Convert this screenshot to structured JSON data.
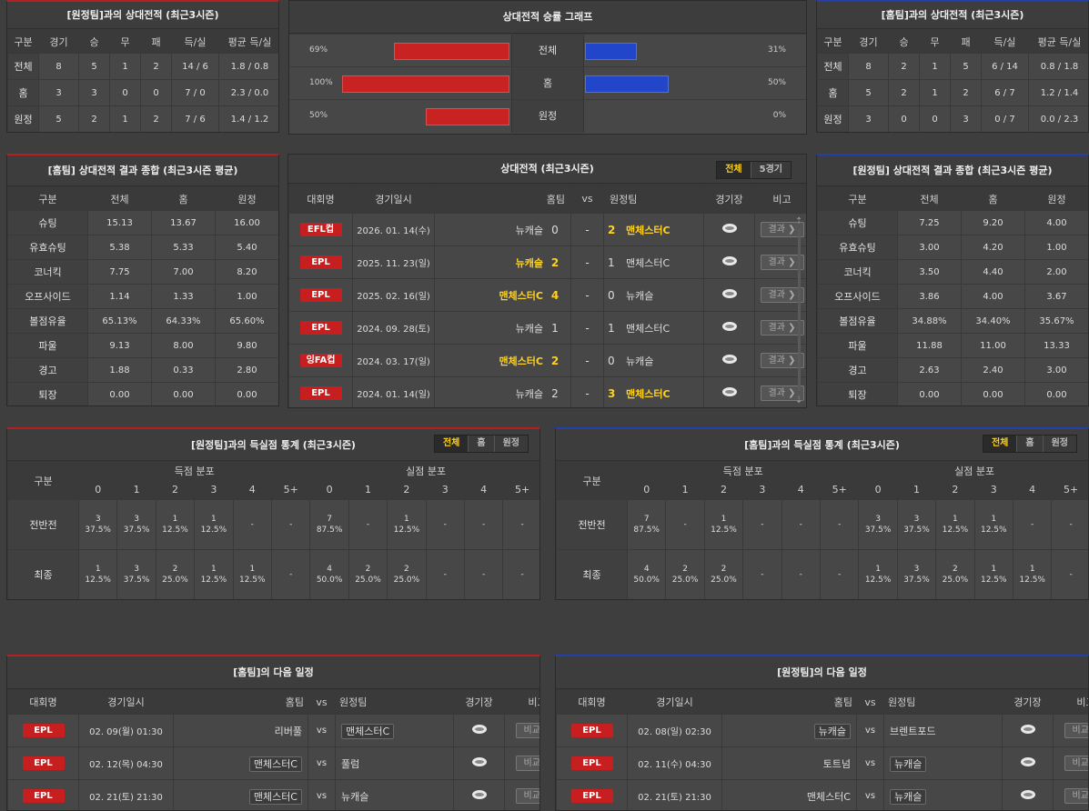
{
  "away_h2h": {
    "title": "[원정팀]과의 상대전적 (최근3시즌)",
    "headers": [
      "구분",
      "경기",
      "승",
      "무",
      "패",
      "득/실",
      "평균 득/실"
    ],
    "rows": [
      [
        "전체",
        "8",
        "5",
        "1",
        "2",
        "14 / 6",
        "1.8 / 0.8"
      ],
      [
        "홈",
        "3",
        "3",
        "0",
        "0",
        "7 / 0",
        "2.3 / 0.0"
      ],
      [
        "원정",
        "5",
        "2",
        "1",
        "2",
        "7 / 6",
        "1.4 / 1.2"
      ]
    ]
  },
  "graph": {
    "title": "상대전적 승률 그래프",
    "rows": [
      {
        "left_pct": "69%",
        "label": "전체",
        "right_pct": "31%",
        "left": 0.69,
        "right": 0.31
      },
      {
        "left_pct": "100%",
        "label": "홈",
        "right_pct": "50%",
        "left": 1.0,
        "right": 0.5
      },
      {
        "left_pct": "50%",
        "label": "원정",
        "right_pct": "0%",
        "left": 0.5,
        "right": 0.0
      }
    ]
  },
  "home_h2h": {
    "title": "[홈팀]과의 상대전적 (최근3시즌)",
    "headers": [
      "구분",
      "경기",
      "승",
      "무",
      "패",
      "득/실",
      "평균 득/실"
    ],
    "rows": [
      [
        "전체",
        "8",
        "2",
        "1",
        "5",
        "6 / 14",
        "0.8 / 1.8"
      ],
      [
        "홈",
        "5",
        "2",
        "1",
        "2",
        "6 / 7",
        "1.2 / 1.4"
      ],
      [
        "원정",
        "3",
        "0",
        "0",
        "3",
        "0 / 7",
        "0.0 / 2.3"
      ]
    ]
  },
  "home_sum": {
    "title": "[홈팀] 상대전적 결과 종합 (최근3시즌 평균)",
    "headers": [
      "구분",
      "전체",
      "홈",
      "원정"
    ],
    "rows": [
      [
        "슈팅",
        "15.13",
        "13.67",
        "16.00"
      ],
      [
        "유효슈팅",
        "5.38",
        "5.33",
        "5.40"
      ],
      [
        "코너킥",
        "7.75",
        "7.00",
        "8.20"
      ],
      [
        "오프사이드",
        "1.14",
        "1.33",
        "1.00"
      ],
      [
        "볼점유율",
        "65.13%",
        "64.33%",
        "65.60%"
      ],
      [
        "파울",
        "9.13",
        "8.00",
        "9.80"
      ],
      [
        "경고",
        "1.88",
        "0.33",
        "2.80"
      ],
      [
        "퇴장",
        "0.00",
        "0.00",
        "0.00"
      ]
    ]
  },
  "away_sum": {
    "title": "[원정팀] 상대전적 결과 종합 (최근3시즌 평균)",
    "headers": [
      "구분",
      "전체",
      "홈",
      "원정"
    ],
    "rows": [
      [
        "슈팅",
        "7.25",
        "9.20",
        "4.00"
      ],
      [
        "유효슈팅",
        "3.00",
        "4.20",
        "1.00"
      ],
      [
        "코너킥",
        "3.50",
        "4.40",
        "2.00"
      ],
      [
        "오프사이드",
        "3.86",
        "4.00",
        "3.67"
      ],
      [
        "볼점유율",
        "34.88%",
        "34.40%",
        "35.67%"
      ],
      [
        "파울",
        "11.88",
        "11.00",
        "13.33"
      ],
      [
        "경고",
        "2.63",
        "2.40",
        "3.00"
      ],
      [
        "퇴장",
        "0.00",
        "0.00",
        "0.00"
      ]
    ]
  },
  "matches": {
    "title": "상대전적 (최근3시즌)",
    "tabs": [
      "전체",
      "5경기"
    ],
    "headers": {
      "league": "대회명",
      "date": "경기일시",
      "home": "홈팀",
      "vs": "vs",
      "away": "원정팀",
      "venue": "경기장",
      "note": "비고"
    },
    "result_label": "결과 ❯",
    "rows": [
      {
        "league": "EFL컵",
        "date": "2026. 01. 14(수)",
        "home": "뉴캐슬",
        "hs": "0",
        "sep": "-",
        "as": "2",
        "away": "맨체스터C",
        "win": "away"
      },
      {
        "league": "EPL",
        "date": "2025. 11. 23(일)",
        "home": "뉴캐슬",
        "hs": "2",
        "sep": "-",
        "as": "1",
        "away": "맨체스터C",
        "win": "home"
      },
      {
        "league": "EPL",
        "date": "2025. 02. 16(일)",
        "home": "맨체스터C",
        "hs": "4",
        "sep": "-",
        "as": "0",
        "away": "뉴캐슬",
        "win": "home"
      },
      {
        "league": "EPL",
        "date": "2024. 09. 28(토)",
        "home": "뉴캐슬",
        "hs": "1",
        "sep": "-",
        "as": "1",
        "away": "맨체스터C",
        "win": "draw"
      },
      {
        "league": "잉FA컵",
        "date": "2024. 03. 17(일)",
        "home": "맨체스터C",
        "hs": "2",
        "sep": "-",
        "as": "0",
        "away": "뉴캐슬",
        "win": "home"
      },
      {
        "league": "EPL",
        "date": "2024. 01. 14(일)",
        "home": "뉴캐슬",
        "hs": "2",
        "sep": "-",
        "as": "3",
        "away": "맨체스터C",
        "win": "away"
      }
    ]
  },
  "away_goals": {
    "title": "[원정팀]과의 득실점 통계 (최근3시즌)",
    "tabs": [
      "전체",
      "홈",
      "원정"
    ],
    "gubun": "구분",
    "scored": "득점 분포",
    "conceded": "실점 분포",
    "cols": [
      "0",
      "1",
      "2",
      "3",
      "4",
      "5+"
    ],
    "rows": [
      {
        "label": "전반전",
        "cells": [
          [
            "3",
            "37.5%"
          ],
          [
            "3",
            "37.5%"
          ],
          [
            "1",
            "12.5%"
          ],
          [
            "1",
            "12.5%"
          ],
          [
            "-",
            ""
          ],
          [
            "-",
            ""
          ],
          [
            "7",
            "87.5%"
          ],
          [
            "-",
            ""
          ],
          [
            "1",
            "12.5%"
          ],
          [
            "-",
            ""
          ],
          [
            "-",
            ""
          ],
          [
            "-",
            ""
          ]
        ]
      },
      {
        "label": "최종",
        "cells": [
          [
            "1",
            "12.5%"
          ],
          [
            "3",
            "37.5%"
          ],
          [
            "2",
            "25.0%"
          ],
          [
            "1",
            "12.5%"
          ],
          [
            "1",
            "12.5%"
          ],
          [
            "-",
            ""
          ],
          [
            "4",
            "50.0%"
          ],
          [
            "2",
            "25.0%"
          ],
          [
            "2",
            "25.0%"
          ],
          [
            "-",
            ""
          ],
          [
            "-",
            ""
          ],
          [
            "-",
            ""
          ]
        ]
      }
    ]
  },
  "home_goals": {
    "title": "[홈팀]과의 득실점 통계 (최근3시즌)",
    "tabs": [
      "전체",
      "홈",
      "원정"
    ],
    "gubun": "구분",
    "scored": "득점 분포",
    "conceded": "실점 분포",
    "cols": [
      "0",
      "1",
      "2",
      "3",
      "4",
      "5+"
    ],
    "rows": [
      {
        "label": "전반전",
        "cells": [
          [
            "7",
            "87.5%"
          ],
          [
            "-",
            ""
          ],
          [
            "1",
            "12.5%"
          ],
          [
            "-",
            ""
          ],
          [
            "-",
            ""
          ],
          [
            "-",
            ""
          ],
          [
            "3",
            "37.5%"
          ],
          [
            "3",
            "37.5%"
          ],
          [
            "1",
            "12.5%"
          ],
          [
            "1",
            "12.5%"
          ],
          [
            "-",
            ""
          ],
          [
            "-",
            ""
          ]
        ]
      },
      {
        "label": "최종",
        "cells": [
          [
            "4",
            "50.0%"
          ],
          [
            "2",
            "25.0%"
          ],
          [
            "2",
            "25.0%"
          ],
          [
            "-",
            ""
          ],
          [
            "-",
            ""
          ],
          [
            "-",
            ""
          ],
          [
            "1",
            "12.5%"
          ],
          [
            "3",
            "37.5%"
          ],
          [
            "2",
            "25.0%"
          ],
          [
            "1",
            "12.5%"
          ],
          [
            "1",
            "12.5%"
          ],
          [
            "-",
            ""
          ]
        ]
      }
    ]
  },
  "home_next": {
    "title": "[홈팀]의 다음 일정",
    "headers": {
      "league": "대회명",
      "date": "경기일시",
      "home": "홈팀",
      "vs": "vs",
      "away": "원정팀",
      "venue": "경기장",
      "note": "비고"
    },
    "btn": "비교 ❯",
    "rows": [
      {
        "league": "EPL",
        "date": "02. 09(월) 01:30",
        "home": "리버풀",
        "vs": "vs",
        "away": "맨체스터C",
        "box": "away"
      },
      {
        "league": "EPL",
        "date": "02. 12(목) 04:30",
        "home": "맨체스터C",
        "vs": "vs",
        "away": "풀럼",
        "box": "home"
      },
      {
        "league": "EPL",
        "date": "02. 21(토) 21:30",
        "home": "맨체스터C",
        "vs": "vs",
        "away": "뉴캐슬",
        "box": "home"
      }
    ]
  },
  "away_next": {
    "title": "[원정팀]의 다음 일정",
    "headers": {
      "league": "대회명",
      "date": "경기일시",
      "home": "홈팀",
      "vs": "vs",
      "away": "원정팀",
      "venue": "경기장",
      "note": "비고"
    },
    "btn": "비교 ❯",
    "rows": [
      {
        "league": "EPL",
        "date": "02. 08(일) 02:30",
        "home": "뉴캐슬",
        "vs": "vs",
        "away": "브렌트포드",
        "box": "home"
      },
      {
        "league": "EPL",
        "date": "02. 11(수) 04:30",
        "home": "토트넘",
        "vs": "vs",
        "away": "뉴캐슬",
        "box": "away"
      },
      {
        "league": "EPL",
        "date": "02. 21(토) 21:30",
        "home": "맨체스터C",
        "vs": "vs",
        "away": "뉴캐슬",
        "box": "away"
      }
    ]
  }
}
